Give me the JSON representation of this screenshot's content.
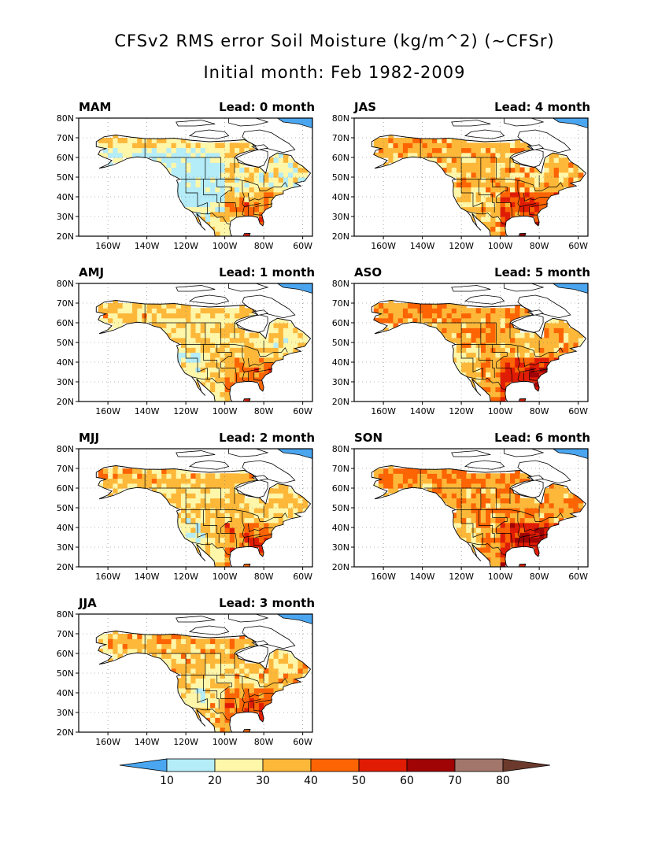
{
  "title": "CFSv2 RMS error Soil Moisture (kg/m^2) (~CFSr)",
  "subtitle": "Initial month: Feb 1982-2009",
  "lat_ticks": [
    "80N",
    "70N",
    "60N",
    "50N",
    "40N",
    "30N",
    "20N"
  ],
  "lon_ticks": [
    "160W",
    "140W",
    "120W",
    "100W",
    "80W",
    "60W"
  ],
  "panels": [
    {
      "season": "MAM",
      "lead": "Lead: 0 month",
      "level": 0
    },
    {
      "season": "JAS",
      "lead": "Lead: 4 month",
      "level": 4
    },
    {
      "season": "AMJ",
      "lead": "Lead: 1 month",
      "level": 1
    },
    {
      "season": "ASO",
      "lead": "Lead: 5 month",
      "level": 5
    },
    {
      "season": "MJJ",
      "lead": "Lead: 2 month",
      "level": 2
    },
    {
      "season": "SON",
      "lead": "Lead: 6 month",
      "level": 6
    },
    {
      "season": "JJA",
      "lead": "Lead: 3 month",
      "level": 3
    }
  ],
  "colorbar": {
    "labels": [
      "10",
      "20",
      "30",
      "40",
      "50",
      "60",
      "70",
      "80"
    ],
    "colors": [
      "#4aa6f0",
      "#b4ecf8",
      "#fef6a8",
      "#fdb83a",
      "#fc6404",
      "#e01c04",
      "#a00404",
      "#a2766a",
      "#6b3a2c"
    ]
  }
}
